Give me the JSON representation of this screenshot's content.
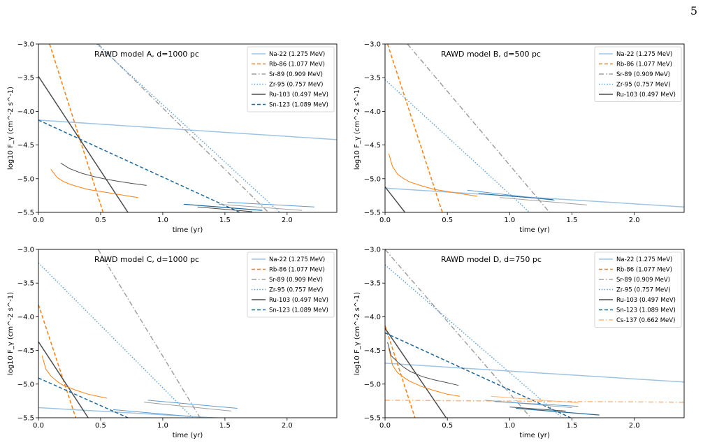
{
  "page": {
    "number": "5"
  },
  "chart_data": [
    {
      "type": "line",
      "title": "RAWD model A, d=1000 pc",
      "xlabel": "time (yr)",
      "ylabel": "log10 F_γ (cm^-2 s^-1)",
      "xlim": [
        0,
        2.4
      ],
      "ylim": [
        -5.5,
        -3.0
      ],
      "xticks": [
        "0.0",
        "0.5",
        "1.0",
        "1.5",
        "2.0"
      ],
      "yticks": [
        "−3.0",
        "−3.5",
        "−4.0",
        "−4.5",
        "−5.0",
        "−5.5"
      ],
      "legend_position": "top-right",
      "series": [
        {
          "name": "Na-22 (1.275 MeV)",
          "color": "#9ec4e3",
          "dash": "solid",
          "width": 1.5,
          "x": [
            0,
            2.4
          ],
          "y": [
            -4.13,
            -4.42
          ]
        },
        {
          "name": "Rb-86 (1.077 MeV)",
          "color": "#ff7f0e",
          "dash": "dashed",
          "width": 1.5,
          "x": [
            0.09,
            0.52
          ],
          "y": [
            -3.0,
            -5.5
          ]
        },
        {
          "name": "Sr-89 (0.909 MeV)",
          "color": "#a0a0a0",
          "dash": "dashdot",
          "width": 1.5,
          "x": [
            0.48,
            1.85
          ],
          "y": [
            -3.0,
            -5.5
          ]
        },
        {
          "name": "Zr-95 (0.757 MeV)",
          "color": "#5a9ed6",
          "dash": "dotted",
          "width": 1.5,
          "x": [
            0.47,
            1.94
          ],
          "y": [
            -3.0,
            -5.5
          ]
        },
        {
          "name": "Ru-103 (0.497 MeV)",
          "color": "#4d4d4d",
          "dash": "solid",
          "width": 1.5,
          "x": [
            0,
            0.72
          ],
          "y": [
            -3.48,
            -5.5
          ]
        },
        {
          "name": "Sn-123 (1.089 MeV)",
          "color": "#1f6a9e",
          "dash": "dashed",
          "width": 1.5,
          "x": [
            0,
            1.62
          ],
          "y": [
            -4.13,
            -5.5
          ]
        }
      ],
      "extra_curves": [
        {
          "color": "#ff7f0e",
          "width": 1,
          "x": [
            0.1,
            0.15,
            0.2,
            0.25,
            0.3,
            0.4,
            0.5,
            0.6,
            0.7,
            0.8
          ],
          "y": [
            -4.86,
            -4.98,
            -5.04,
            -5.08,
            -5.11,
            -5.16,
            -5.19,
            -5.22,
            -5.25,
            -5.28
          ]
        },
        {
          "color": "#4d4d4d",
          "width": 1,
          "x": [
            0.18,
            0.25,
            0.35,
            0.45,
            0.55,
            0.65,
            0.75,
            0.87
          ],
          "y": [
            -4.77,
            -4.85,
            -4.92,
            -4.97,
            -5.01,
            -5.04,
            -5.07,
            -5.1
          ]
        },
        {
          "color": "#1f6a9e",
          "width": 1.2,
          "x": [
            1.17,
            1.8
          ],
          "y": [
            -5.38,
            -5.47
          ]
        },
        {
          "color": "#5a9ed6",
          "width": 1,
          "x": [
            1.52,
            2.22
          ],
          "y": [
            -5.35,
            -5.42
          ]
        },
        {
          "color": "#a0a0a0",
          "width": 1,
          "x": [
            1.45,
            2.12
          ],
          "y": [
            -5.38,
            -5.47
          ]
        },
        {
          "color": "#4d4d4d",
          "width": 1,
          "x": [
            1.28,
            1.72
          ],
          "y": [
            -5.42,
            -5.49
          ]
        }
      ]
    },
    {
      "type": "line",
      "title": "RAWD model B, d=500 pc",
      "xlabel": "time (yr)",
      "ylabel": "log10 F_γ (cm^-2 s^-1)",
      "xlim": [
        0,
        2.4
      ],
      "ylim": [
        -5.5,
        -3.0
      ],
      "xticks": [
        "0.0",
        "0.5",
        "1.0",
        "1.5",
        "2.0"
      ],
      "yticks": [
        "−3.0",
        "−3.5",
        "−4.0",
        "−4.5",
        "−5.0",
        "−5.5"
      ],
      "legend_position": "top-right",
      "series": [
        {
          "name": "Na-22 (1.275 MeV)",
          "color": "#9ec4e3",
          "dash": "solid",
          "width": 1.5,
          "x": [
            0,
            2.4
          ],
          "y": [
            -5.14,
            -5.42
          ]
        },
        {
          "name": "Rb-86 (1.077 MeV)",
          "color": "#ff7f0e",
          "dash": "dashed",
          "width": 1.5,
          "x": [
            0.02,
            0.46
          ],
          "y": [
            -3.0,
            -5.5
          ]
        },
        {
          "name": "Sr-89 (0.909 MeV)",
          "color": "#a0a0a0",
          "dash": "dashdot",
          "width": 1.5,
          "x": [
            0.18,
            1.32
          ],
          "y": [
            -3.0,
            -5.5
          ]
        },
        {
          "name": "Zr-95 (0.757 MeV)",
          "color": "#5a9ed6",
          "dash": "dotted",
          "width": 1.5,
          "x": [
            0,
            1.16
          ],
          "y": [
            -3.53,
            -5.5
          ]
        },
        {
          "name": "Ru-103 (0.497 MeV)",
          "color": "#4d4d4d",
          "dash": "solid",
          "width": 1.5,
          "x": [
            0,
            0.16
          ],
          "y": [
            -5.12,
            -5.5
          ]
        }
      ],
      "extra_curves": [
        {
          "color": "#ff7f0e",
          "width": 1,
          "x": [
            0.03,
            0.06,
            0.1,
            0.15,
            0.2,
            0.3,
            0.4,
            0.5,
            0.6,
            0.74
          ],
          "y": [
            -4.63,
            -4.82,
            -4.93,
            -5.0,
            -5.05,
            -5.11,
            -5.16,
            -5.19,
            -5.22,
            -5.26
          ]
        },
        {
          "color": "#5a9ed6",
          "width": 1,
          "x": [
            0.66,
            1.36
          ],
          "y": [
            -5.17,
            -5.32
          ]
        },
        {
          "color": "#a0a0a0",
          "width": 1,
          "x": [
            0.92,
            1.62
          ],
          "y": [
            -5.28,
            -5.39
          ]
        },
        {
          "color": "#1f6a9e",
          "width": 1,
          "x": [
            0.75,
            1.35
          ],
          "y": [
            -5.22,
            -5.31
          ]
        }
      ]
    },
    {
      "type": "line",
      "title": "RAWD model C, d=1000 pc",
      "xlabel": "time (yr)",
      "ylabel": "log10 F_γ (cm^-2 s^-1)",
      "xlim": [
        0,
        2.4
      ],
      "ylim": [
        -5.5,
        -3.0
      ],
      "xticks": [
        "0.0",
        "0.5",
        "1.0",
        "1.5",
        "2.0"
      ],
      "yticks": [
        "−3.0",
        "−3.5",
        "−4.0",
        "−4.5",
        "−5.0",
        "−5.5"
      ],
      "legend_position": "top-right",
      "series": [
        {
          "name": "Na-22 (1.275 MeV)",
          "color": "#9ec4e3",
          "dash": "solid",
          "width": 1.5,
          "x": [
            0,
            1.6
          ],
          "y": [
            -5.35,
            -5.52
          ]
        },
        {
          "name": "Rb-86 (1.077 MeV)",
          "color": "#ff7f0e",
          "dash": "dashed",
          "width": 1.5,
          "x": [
            0,
            0.3
          ],
          "y": [
            -3.82,
            -5.5
          ]
        },
        {
          "name": "Sr-89 (0.909 MeV)",
          "color": "#a0a0a0",
          "dash": "dashdot",
          "width": 1.5,
          "x": [
            0.48,
            1.3
          ],
          "y": [
            -3.0,
            -5.5
          ]
        },
        {
          "name": "Zr-95 (0.757 MeV)",
          "color": "#5a9ed6",
          "dash": "dotted",
          "width": 1.5,
          "x": [
            0,
            1.24
          ],
          "y": [
            -3.2,
            -5.5
          ]
        },
        {
          "name": "Ru-103 (0.497 MeV)",
          "color": "#4d4d4d",
          "dash": "solid",
          "width": 1.5,
          "x": [
            0,
            0.4
          ],
          "y": [
            -4.37,
            -5.5
          ]
        },
        {
          "name": "Sn-123 (1.089 MeV)",
          "color": "#1f6a9e",
          "dash": "dashed",
          "width": 1.5,
          "x": [
            0,
            0.72
          ],
          "y": [
            -4.91,
            -5.5
          ]
        }
      ],
      "extra_curves": [
        {
          "color": "#ff7f0e",
          "width": 1,
          "x": [
            0.03,
            0.06,
            0.1,
            0.15,
            0.2,
            0.3,
            0.4,
            0.55
          ],
          "y": [
            -4.58,
            -4.78,
            -4.88,
            -4.96,
            -5.02,
            -5.09,
            -5.15,
            -5.21
          ]
        },
        {
          "color": "#5a9ed6",
          "width": 1,
          "x": [
            0.88,
            1.6
          ],
          "y": [
            -5.24,
            -5.36
          ]
        },
        {
          "color": "#a0a0a0",
          "width": 1,
          "x": [
            0.85,
            1.55
          ],
          "y": [
            -5.27,
            -5.4
          ]
        },
        {
          "color": "#5a9ed6",
          "width": 1,
          "x": [
            0.6,
            1.22
          ],
          "y": [
            -5.38,
            -5.48
          ]
        }
      ]
    },
    {
      "type": "line",
      "title": "RAWD model D, d=750 pc",
      "xlabel": "time (yr)",
      "ylabel": "log10 F_γ (cm^-2 s^-1)",
      "xlim": [
        0,
        2.4
      ],
      "ylim": [
        -5.5,
        -3.0
      ],
      "xticks": [
        "0.0",
        "0.5",
        "1.0",
        "1.5",
        "2.0"
      ],
      "yticks": [
        "−3.0",
        "−3.5",
        "−4.0",
        "−4.5",
        "−5.0",
        "−5.5"
      ],
      "legend_position": "top-right",
      "series": [
        {
          "name": "Na-22 (1.275 MeV)",
          "color": "#9ec4e3",
          "dash": "solid",
          "width": 1.5,
          "x": [
            0,
            2.4
          ],
          "y": [
            -4.69,
            -4.97
          ]
        },
        {
          "name": "Rb-86 (1.077 MeV)",
          "color": "#ff7f0e",
          "dash": "dashed",
          "width": 1.5,
          "x": [
            0,
            0.24
          ],
          "y": [
            -4.13,
            -5.5
          ]
        },
        {
          "name": "Sr-89 (0.909 MeV)",
          "color": "#a0a0a0",
          "dash": "dashdot",
          "width": 1.5,
          "x": [
            0.0,
            1.17
          ],
          "y": [
            -3.0,
            -5.5
          ]
        },
        {
          "name": "Zr-95 (0.757 MeV)",
          "color": "#5a9ed6",
          "dash": "dotted",
          "width": 1.5,
          "x": [
            0,
            1.42
          ],
          "y": [
            -3.23,
            -5.5
          ]
        },
        {
          "name": "Ru-103 (0.497 MeV)",
          "color": "#4d4d4d",
          "dash": "solid",
          "width": 1.5,
          "x": [
            0,
            0.49
          ],
          "y": [
            -4.17,
            -5.5
          ]
        },
        {
          "name": "Sn-123 (1.089 MeV)",
          "color": "#1f6a9e",
          "dash": "dashed",
          "width": 1.5,
          "x": [
            0,
            1.49
          ],
          "y": [
            -4.24,
            -5.5
          ]
        },
        {
          "name": "Cs-137 (0.662 MeV)",
          "color": "#fdb67a",
          "dash": "dashdot",
          "width": 1.5,
          "x": [
            0,
            2.4
          ],
          "y": [
            -5.24,
            -5.27
          ]
        }
      ],
      "extra_curves": [
        {
          "color": "#ff7f0e",
          "width": 1,
          "x": [
            0.03,
            0.06,
            0.1,
            0.15,
            0.2,
            0.3,
            0.4,
            0.5,
            0.6
          ],
          "y": [
            -4.47,
            -4.72,
            -4.83,
            -4.9,
            -4.96,
            -5.04,
            -5.1,
            -5.15,
            -5.18
          ]
        },
        {
          "color": "#4d4d4d",
          "width": 1,
          "x": [
            0.02,
            0.05,
            0.1,
            0.15,
            0.2,
            0.3,
            0.4,
            0.5,
            0.59
          ],
          "y": [
            -4.38,
            -4.58,
            -4.67,
            -4.75,
            -4.81,
            -4.89,
            -4.94,
            -4.98,
            -5.02
          ]
        },
        {
          "color": "#fdb67a",
          "width": 1,
          "x": [
            0.85,
            1.55
          ],
          "y": [
            -5.18,
            -5.28
          ]
        },
        {
          "color": "#a0a0a0",
          "width": 1,
          "x": [
            0.8,
            1.5
          ],
          "y": [
            -5.24,
            -5.35
          ]
        },
        {
          "color": "#1f6a9e",
          "width": 1.2,
          "x": [
            1.05,
            1.72
          ],
          "y": [
            -5.36,
            -5.46
          ]
        },
        {
          "color": "#4d4d4d",
          "width": 1,
          "x": [
            1.0,
            1.45
          ],
          "y": [
            -5.34,
            -5.4
          ]
        },
        {
          "color": "#5a9ed6",
          "width": 1,
          "x": [
            0.88,
            1.55
          ],
          "y": [
            -5.26,
            -5.33
          ]
        }
      ]
    }
  ]
}
